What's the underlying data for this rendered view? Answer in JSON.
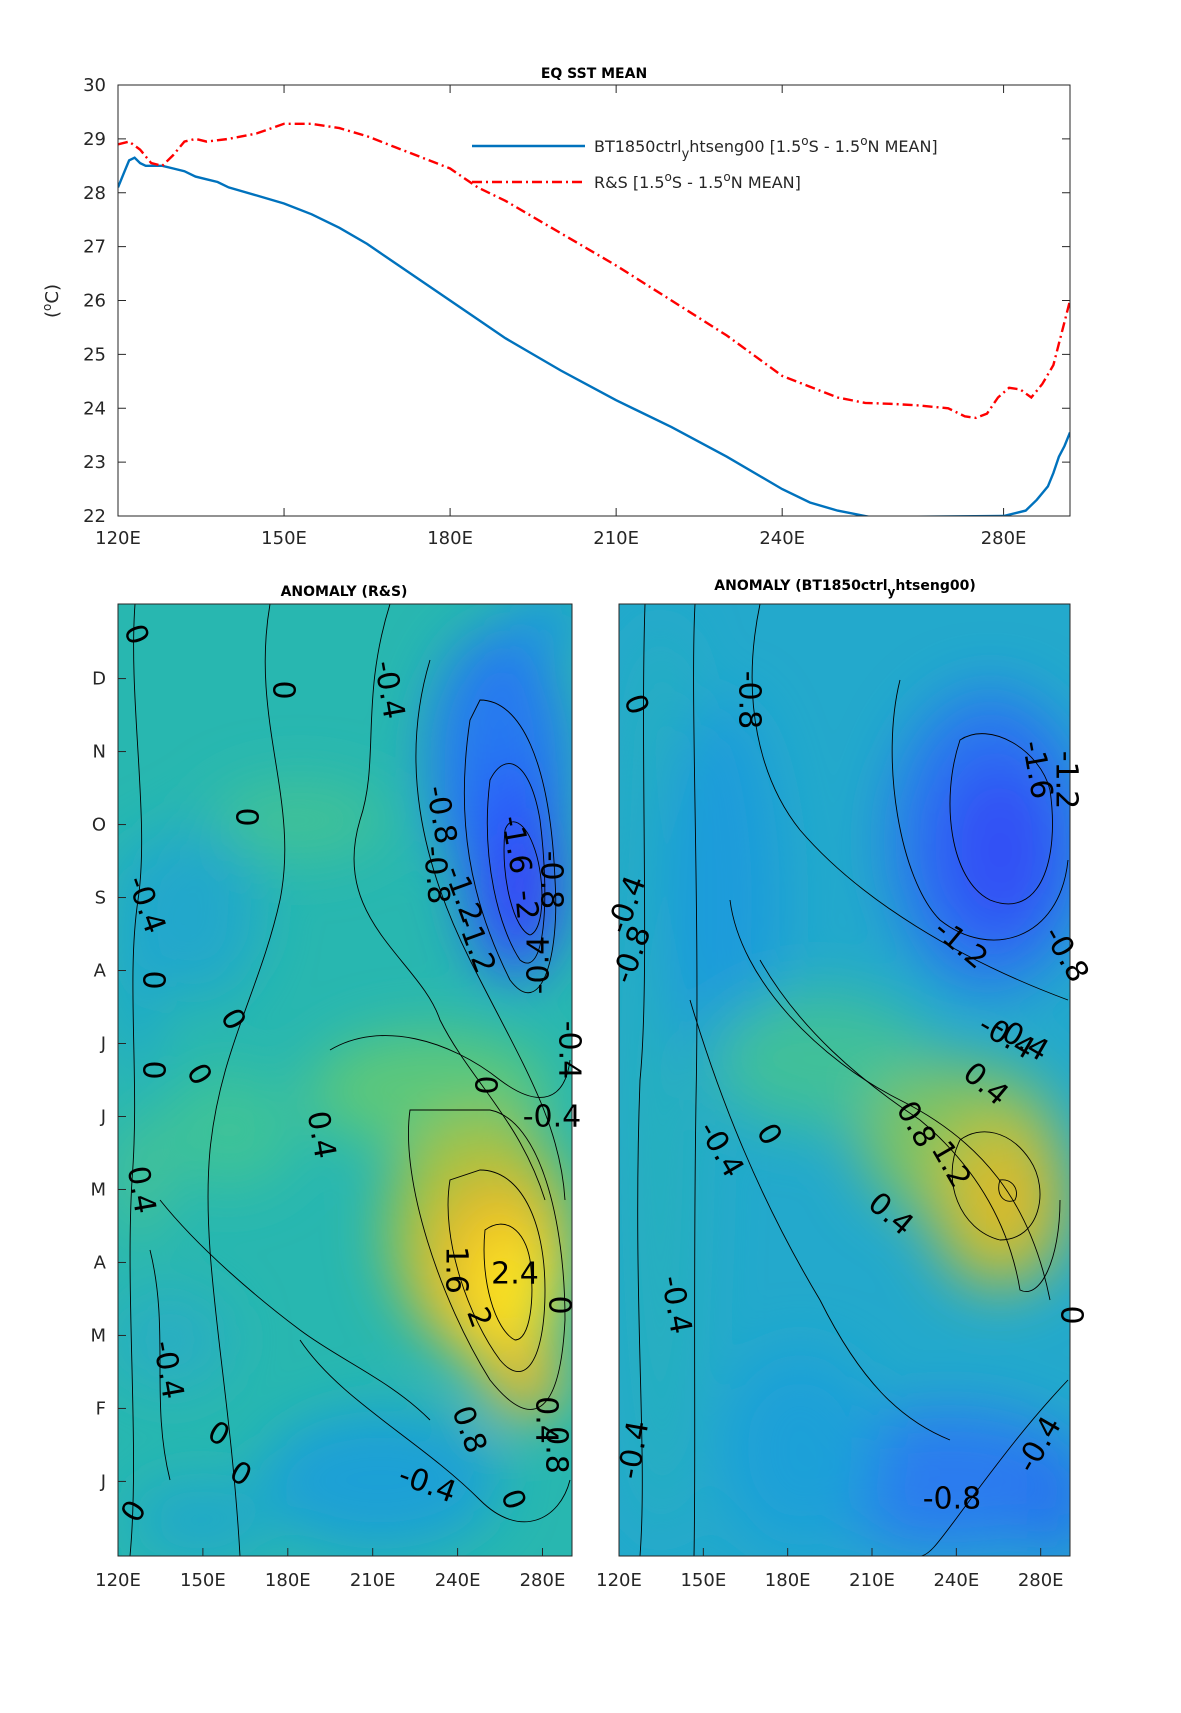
{
  "chart_data": [
    {
      "type": "line",
      "title": "EQ SST MEAN",
      "xlabel": "",
      "ylabel": "(°C)",
      "xlim": [
        120,
        292
      ],
      "ylim": [
        22,
        30
      ],
      "xticks": [
        120,
        150,
        180,
        210,
        240,
        280
      ],
      "xtick_labels": [
        "120E",
        "150E",
        "180E",
        "210E",
        "240E",
        "280E"
      ],
      "yticks": [
        22,
        23,
        24,
        25,
        26,
        27,
        28,
        29,
        30
      ],
      "ytick_labels": [
        "22",
        "23",
        "24",
        "25",
        "26",
        "27",
        "28",
        "29",
        "30"
      ],
      "legend_position": "top-right",
      "series": [
        {
          "name": "BT1850ctrl",
          "name_sub": "y",
          "name_rest": "htseng00 [1.5",
          "name_o1": "o",
          "name_mid": "S - 1.5",
          "name_o2": "o",
          "name_end": "N MEAN]",
          "color": "#0072bd",
          "style": "solid",
          "x": [
            120,
            121,
            122,
            123,
            124,
            125,
            126,
            128,
            130,
            132,
            134,
            136,
            138,
            140,
            145,
            150,
            155,
            160,
            165,
            170,
            175,
            180,
            185,
            190,
            195,
            200,
            210,
            220,
            230,
            240,
            245,
            250,
            255,
            256,
            280,
            284,
            286,
            288,
            289,
            290,
            291,
            292
          ],
          "y": [
            28.1,
            28.35,
            28.6,
            28.65,
            28.55,
            28.5,
            28.5,
            28.5,
            28.45,
            28.4,
            28.3,
            28.25,
            28.2,
            28.1,
            27.95,
            27.8,
            27.6,
            27.35,
            27.05,
            26.7,
            26.35,
            26.0,
            25.65,
            25.3,
            25.0,
            24.7,
            24.15,
            23.65,
            23.1,
            22.5,
            22.25,
            22.1,
            22.0,
            21.98,
            22.0,
            22.1,
            22.3,
            22.55,
            22.8,
            23.1,
            23.3,
            23.55
          ]
        },
        {
          "name": "R&S",
          "name_rest": " [1.5",
          "name_o1": "o",
          "name_mid": "S - 1.5",
          "name_o2": "o",
          "name_end": "N MEAN]",
          "color": "#ff0000",
          "style": "dashdot",
          "x": [
            120,
            122,
            124,
            126,
            128,
            130,
            132,
            134,
            136,
            140,
            145,
            150,
            155,
            160,
            165,
            170,
            175,
            180,
            185,
            190,
            200,
            210,
            220,
            230,
            240,
            250,
            255,
            260,
            265,
            270,
            273,
            275,
            277,
            279,
            281,
            283,
            285,
            287,
            289,
            290,
            291,
            292
          ],
          "y": [
            28.9,
            28.95,
            28.8,
            28.55,
            28.5,
            28.7,
            28.95,
            29.0,
            28.95,
            29.0,
            29.1,
            29.28,
            29.28,
            29.2,
            29.05,
            28.85,
            28.65,
            28.45,
            28.1,
            27.85,
            27.25,
            26.65,
            26.0,
            25.35,
            24.6,
            24.2,
            24.1,
            24.08,
            24.05,
            24.0,
            23.85,
            23.82,
            23.9,
            24.2,
            24.38,
            24.35,
            24.2,
            24.45,
            24.8,
            25.2,
            25.6,
            26.0
          ]
        }
      ]
    },
    {
      "type": "heatmap",
      "title": "ANOMALY (R&S)",
      "xtick_labels": [
        "120E",
        "150E",
        "180E",
        "210E",
        "240E",
        "280E"
      ],
      "ytick_labels": [
        "J",
        "F",
        "M",
        "A",
        "M",
        "J",
        "J",
        "A",
        "S",
        "O",
        "N",
        "D"
      ],
      "contour_labels": [
        "0",
        "0",
        "-0.4",
        "0",
        "-0.4",
        "0",
        "-0.8",
        "-1.6",
        "-2",
        "-0.8",
        "-1.2",
        "-1.2",
        "-0.8",
        "-0.4",
        "0",
        "0",
        "0",
        "-0.4",
        "0",
        "0.4",
        "0.4",
        "2.4",
        "1.6",
        "2",
        "0.8",
        "0",
        "-0.4",
        "-0.4",
        "0",
        "0",
        "0.8",
        "0.4",
        "-0.4",
        "0",
        "0"
      ]
    },
    {
      "type": "heatmap",
      "title": "ANOMALY (BT1850ctrl",
      "title_sub": "y",
      "title_end": "htseng00)",
      "xtick_labels": [
        "120E",
        "150E",
        "180E",
        "210E",
        "240E",
        "280E"
      ],
      "contour_labels": [
        "0",
        "-0.8",
        "-1.6",
        "-1.2",
        "-0.4",
        "-0.8",
        "-1.2",
        "-0.8",
        "-0.4",
        "-0.4",
        "0.4",
        "0.8",
        "1.2",
        "-0.4",
        "0",
        "0.4",
        "-0.4",
        "0",
        "-0.4",
        "-0.4",
        "-0.8"
      ]
    }
  ]
}
